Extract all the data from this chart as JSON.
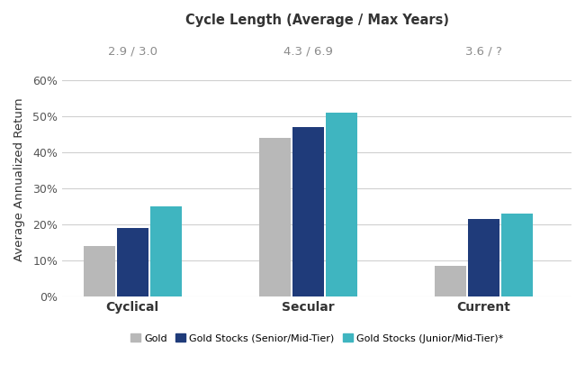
{
  "title": "Cycle Length (Average / Max Years)",
  "ylabel": "Average Annualized Return",
  "categories": [
    "Cyclical",
    "Secular",
    "Current"
  ],
  "cycle_labels": [
    "2.9 / 3.0",
    "4.3 / 6.9",
    "3.6 / ?"
  ],
  "series": {
    "Gold": [
      14,
      44,
      8.5
    ],
    "Gold Stocks (Senior/Mid-Tier)": [
      19,
      47,
      21.5
    ],
    "Gold Stocks (Junior/Mid-Tier)*": [
      25,
      51,
      23
    ]
  },
  "colors": {
    "Gold": "#b8b8b8",
    "Gold Stocks (Senior/Mid-Tier)": "#1f3b7a",
    "Gold Stocks (Junior/Mid-Tier)*": "#3fb5c0"
  },
  "ylim": [
    0,
    65
  ],
  "yticks": [
    0,
    10,
    20,
    30,
    40,
    50,
    60
  ],
  "ytick_labels": [
    "0%",
    "10%",
    "20%",
    "30%",
    "40%",
    "50%",
    "60%"
  ],
  "bar_width": 0.18,
  "background_color": "#ffffff",
  "grid_color": "#d0d0d0",
  "title_fontsize": 10.5,
  "axis_label_fontsize": 9.5,
  "tick_fontsize": 9,
  "legend_fontsize": 8,
  "cycle_label_color": "#8c8c8c",
  "cycle_label_fontsize": 9.5,
  "cat_label_fontsize": 10
}
